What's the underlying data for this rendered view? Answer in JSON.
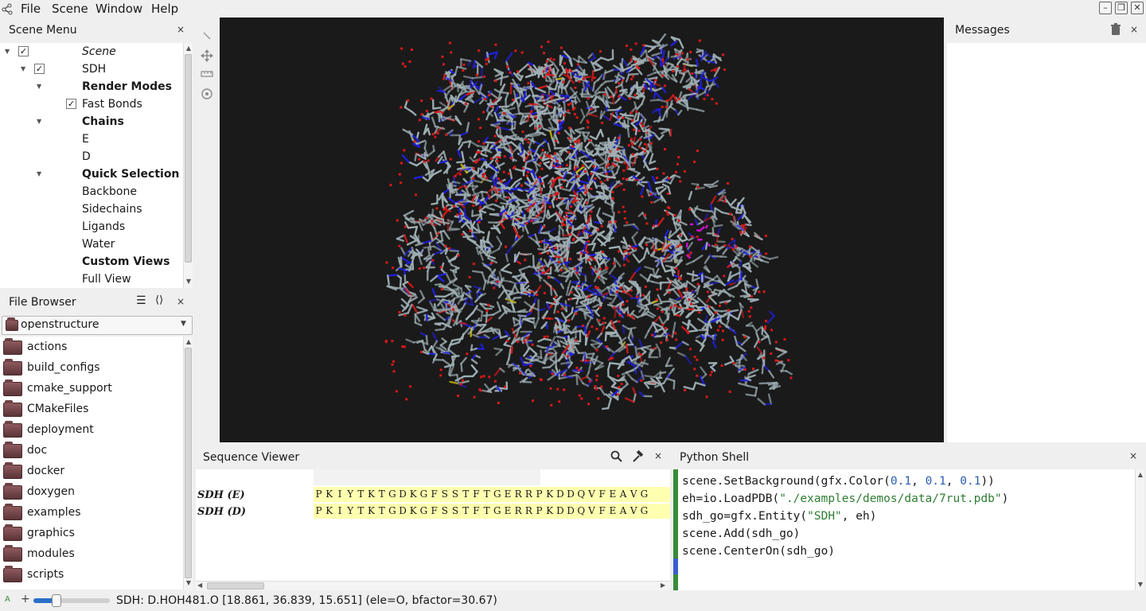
{
  "menubar": {
    "items": [
      "File",
      "Scene",
      "Window",
      "Help"
    ]
  },
  "scene_menu": {
    "title": "Scene Menu",
    "close": "×",
    "root": "Scene",
    "entity": "SDH",
    "render_modes": "Render Modes",
    "fast_bonds": "Fast Bonds",
    "chains": "Chains",
    "chain_e": "E",
    "chain_d": "D",
    "quick_selection": "Quick Selection",
    "backbone": "Backbone",
    "sidechains": "Sidechains",
    "ligands": "Ligands",
    "water": "Water",
    "custom_views": "Custom Views",
    "full_view": "Full View"
  },
  "file_browser": {
    "title": "File Browser",
    "close": "×",
    "current_dir": "openstructure",
    "folders": [
      "actions",
      "build_configs",
      "cmake_support",
      "CMakeFiles",
      "deployment",
      "doc",
      "docker",
      "doxygen",
      "examples",
      "graphics",
      "modules",
      "scripts"
    ]
  },
  "messages": {
    "title": "Messages",
    "close": "×"
  },
  "sequence_viewer": {
    "title": "Sequence Viewer",
    "close": "×",
    "rows": [
      {
        "label": "SDH (E)",
        "residues": [
          "P",
          "K",
          "I",
          "Y",
          "T",
          "K",
          "T",
          "G",
          "D",
          "K",
          "G",
          "F",
          "S",
          "S",
          "T",
          "F",
          "T",
          "G",
          "E",
          "R",
          "R",
          "P",
          "K",
          "D",
          "D",
          "Q",
          "V",
          "F",
          "E",
          "A",
          "V",
          "G"
        ]
      },
      {
        "label": "SDH (D)",
        "residues": [
          "P",
          "K",
          "I",
          "Y",
          "T",
          "K",
          "T",
          "G",
          "D",
          "K",
          "G",
          "F",
          "S",
          "S",
          "T",
          "F",
          "T",
          "G",
          "E",
          "R",
          "R",
          "P",
          "K",
          "D",
          "D",
          "Q",
          "V",
          "F",
          "E",
          "A",
          "V",
          "G"
        ]
      }
    ]
  },
  "python_shell": {
    "title": "Python Shell",
    "close": "×",
    "lines": [
      [
        {
          "t": "scene.SetBackground(gfx.Color(",
          "c": ""
        },
        {
          "t": "0.1",
          "c": "num"
        },
        {
          "t": ", ",
          "c": ""
        },
        {
          "t": "0.1",
          "c": "num"
        },
        {
          "t": ", ",
          "c": ""
        },
        {
          "t": "0.1",
          "c": "num"
        },
        {
          "t": "))",
          "c": ""
        }
      ],
      [
        {
          "t": "eh=io.LoadPDB(",
          "c": ""
        },
        {
          "t": "\"./examples/demos/data/7rut.pdb\"",
          "c": "str"
        },
        {
          "t": ")",
          "c": ""
        }
      ],
      [
        {
          "t": "sdh_go=gfx.Entity(",
          "c": ""
        },
        {
          "t": "\"SDH\"",
          "c": "str"
        },
        {
          "t": ", eh)",
          "c": ""
        }
      ],
      [
        {
          "t": "scene.Add(sdh_go)",
          "c": ""
        }
      ],
      [
        {
          "t": "scene.CenterOn(sdh_go)",
          "c": ""
        }
      ]
    ]
  },
  "status": {
    "text": "SDH: D.HOH481.O [18.861, 36.839, 15.651] (ele=O, bfactor=30.67)",
    "slider_level": 0.3
  },
  "icons": {
    "app_logo": "molecule-logo-icon",
    "viewer_tools": [
      "select-tool-icon",
      "move-tool-icon",
      "measure-tool-icon",
      "rotate-tool-icon"
    ]
  },
  "colors": {
    "viewer_bg": "#1a1a1a",
    "carbon": "#9fb0b5",
    "nitrogen": "#1f1fe0",
    "oxygen": "#d81818",
    "sulfur": "#c8b400",
    "ligand": "#d010d0",
    "sequence_highlight": "#ffffb0"
  }
}
